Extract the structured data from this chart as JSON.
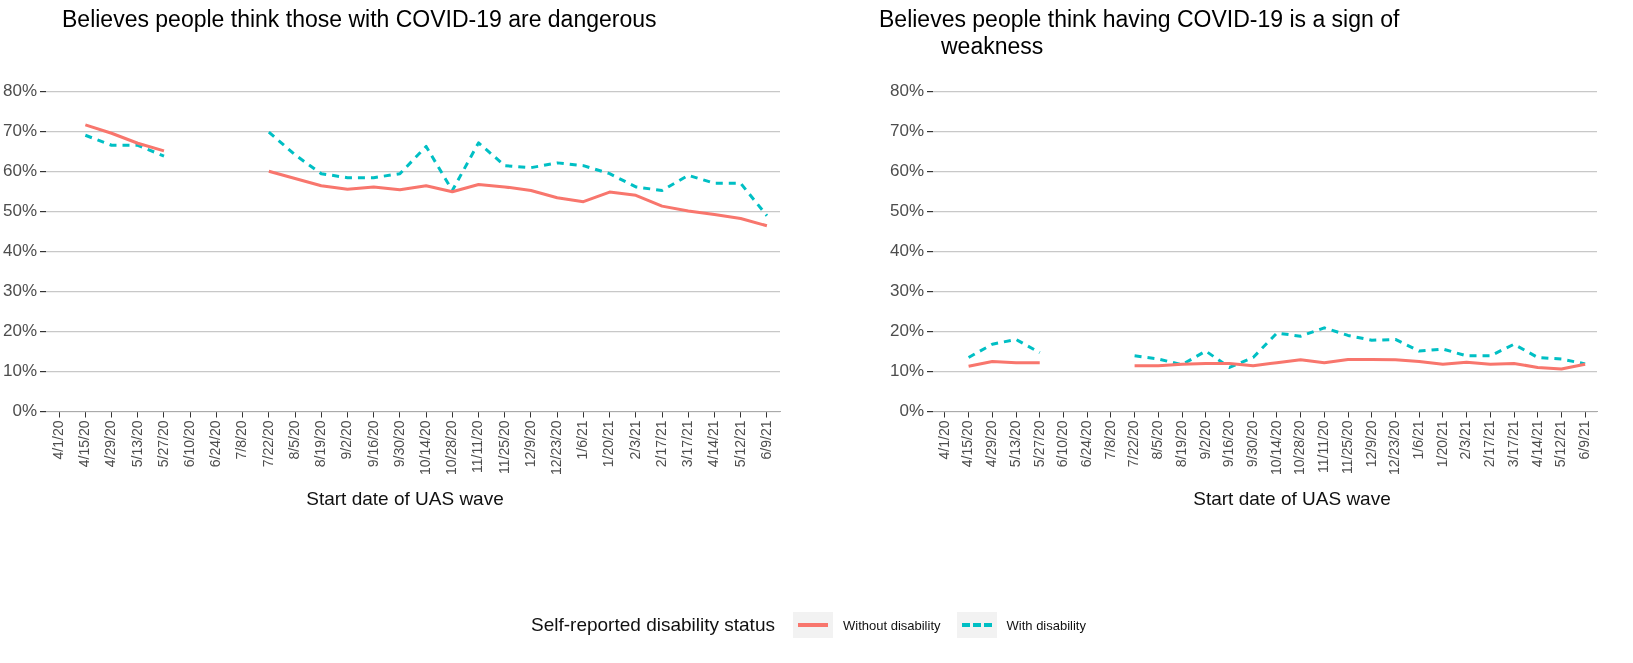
{
  "chart_data": [
    {
      "type": "line",
      "title": "Believes people think those with COVID-19 are dangerous",
      "xlabel": "Start date of UAS wave",
      "legend_title": "Self-reported disability status",
      "legend": "bottom",
      "grid": "y",
      "marker": "none",
      "categories": [
        "4/1/20",
        "4/15/20",
        "4/29/20",
        "5/13/20",
        "5/27/20",
        "6/10/20",
        "6/24/20",
        "7/8/20",
        "7/22/20",
        "8/5/20",
        "8/19/20",
        "9/2/20",
        "9/16/20",
        "9/30/20",
        "10/14/20",
        "10/28/20",
        "11/11/20",
        "11/25/20",
        "12/9/20",
        "12/23/20",
        "1/6/21",
        "1/20/21",
        "2/3/21",
        "2/17/21",
        "3/17/21",
        "4/14/21",
        "5/12/21",
        "6/9/21"
      ],
      "ylim": [
        0,
        80
      ],
      "yticks": [
        {
          "value": 0,
          "label": "0%"
        },
        {
          "value": 10,
          "label": "10%"
        },
        {
          "value": 20,
          "label": "20%"
        },
        {
          "value": 30,
          "label": "30%"
        },
        {
          "value": 40,
          "label": "40%"
        },
        {
          "value": 50,
          "label": "50%"
        },
        {
          "value": 60,
          "label": "60%"
        },
        {
          "value": 70,
          "label": "70%"
        },
        {
          "value": 80,
          "label": "80%"
        }
      ],
      "series": [
        {
          "name": "Without disability",
          "color": "#f8766d",
          "line_style": "solid",
          "values": [
            null,
            71.6,
            69.5,
            67,
            65.1,
            null,
            null,
            null,
            60,
            58.2,
            56.4,
            55.5,
            56.1,
            55.4,
            56.4,
            54.9,
            56.7,
            56.1,
            55.2,
            53.4,
            52.4,
            54.8,
            54,
            51.3,
            50.1,
            49.2,
            48.2,
            46.4
          ]
        },
        {
          "name": "With disability",
          "color": "#00bfc4",
          "line_style": "dashed",
          "values": [
            null,
            69,
            66.5,
            66.5,
            63.8,
            null,
            null,
            null,
            69.8,
            64.1,
            59.4,
            58.4,
            58.4,
            59.4,
            66.2,
            55.2,
            67.1,
            61.4,
            60.9,
            62.1,
            61.4,
            59.4,
            56.1,
            55.2,
            59,
            57,
            57,
            48.9
          ]
        }
      ]
    },
    {
      "type": "line",
      "title": "Believes people think having COVID-19 is a sign of weakness",
      "xlabel": "Start date of UAS wave",
      "grid": "y",
      "marker": "none",
      "categories": [
        "4/1/20",
        "4/15/20",
        "4/29/20",
        "5/13/20",
        "5/27/20",
        "6/10/20",
        "6/24/20",
        "7/8/20",
        "7/22/20",
        "8/5/20",
        "8/19/20",
        "9/2/20",
        "9/16/20",
        "9/30/20",
        "10/14/20",
        "10/28/20",
        "11/11/20",
        "11/25/20",
        "12/9/20",
        "12/23/20",
        "1/6/21",
        "1/20/21",
        "2/3/21",
        "2/17/21",
        "3/17/21",
        "4/14/21",
        "5/12/21",
        "6/9/21"
      ],
      "ylim": [
        0,
        80
      ],
      "yticks": [
        {
          "value": 0,
          "label": "0%"
        },
        {
          "value": 10,
          "label": "10%"
        },
        {
          "value": 20,
          "label": "20%"
        },
        {
          "value": 30,
          "label": "30%"
        },
        {
          "value": 40,
          "label": "40%"
        },
        {
          "value": 50,
          "label": "50%"
        },
        {
          "value": 60,
          "label": "60%"
        },
        {
          "value": 70,
          "label": "70%"
        },
        {
          "value": 80,
          "label": "80%"
        }
      ],
      "series": [
        {
          "color": "#f8766d",
          "line_style": "solid",
          "values": [
            null,
            11.3,
            12.5,
            12.2,
            12.2,
            null,
            null,
            null,
            11.4,
            11.4,
            11.8,
            12,
            12,
            11.4,
            12.2,
            12.9,
            12.2,
            13,
            13,
            12.9,
            12.5,
            11.8,
            12.3,
            11.8,
            12,
            11,
            10.6,
            11.8
          ]
        },
        {
          "color": "#00bfc4",
          "line_style": "dashed",
          "values": [
            null,
            13.5,
            16.8,
            18,
            14.7,
            null,
            null,
            null,
            13.9,
            13.1,
            11.7,
            15.1,
            11,
            13.5,
            19.6,
            18.8,
            20.9,
            19,
            17.8,
            18,
            15.1,
            15.6,
            13.9,
            13.9,
            16.8,
            13.5,
            13.1,
            11.9
          ]
        }
      ]
    }
  ]
}
